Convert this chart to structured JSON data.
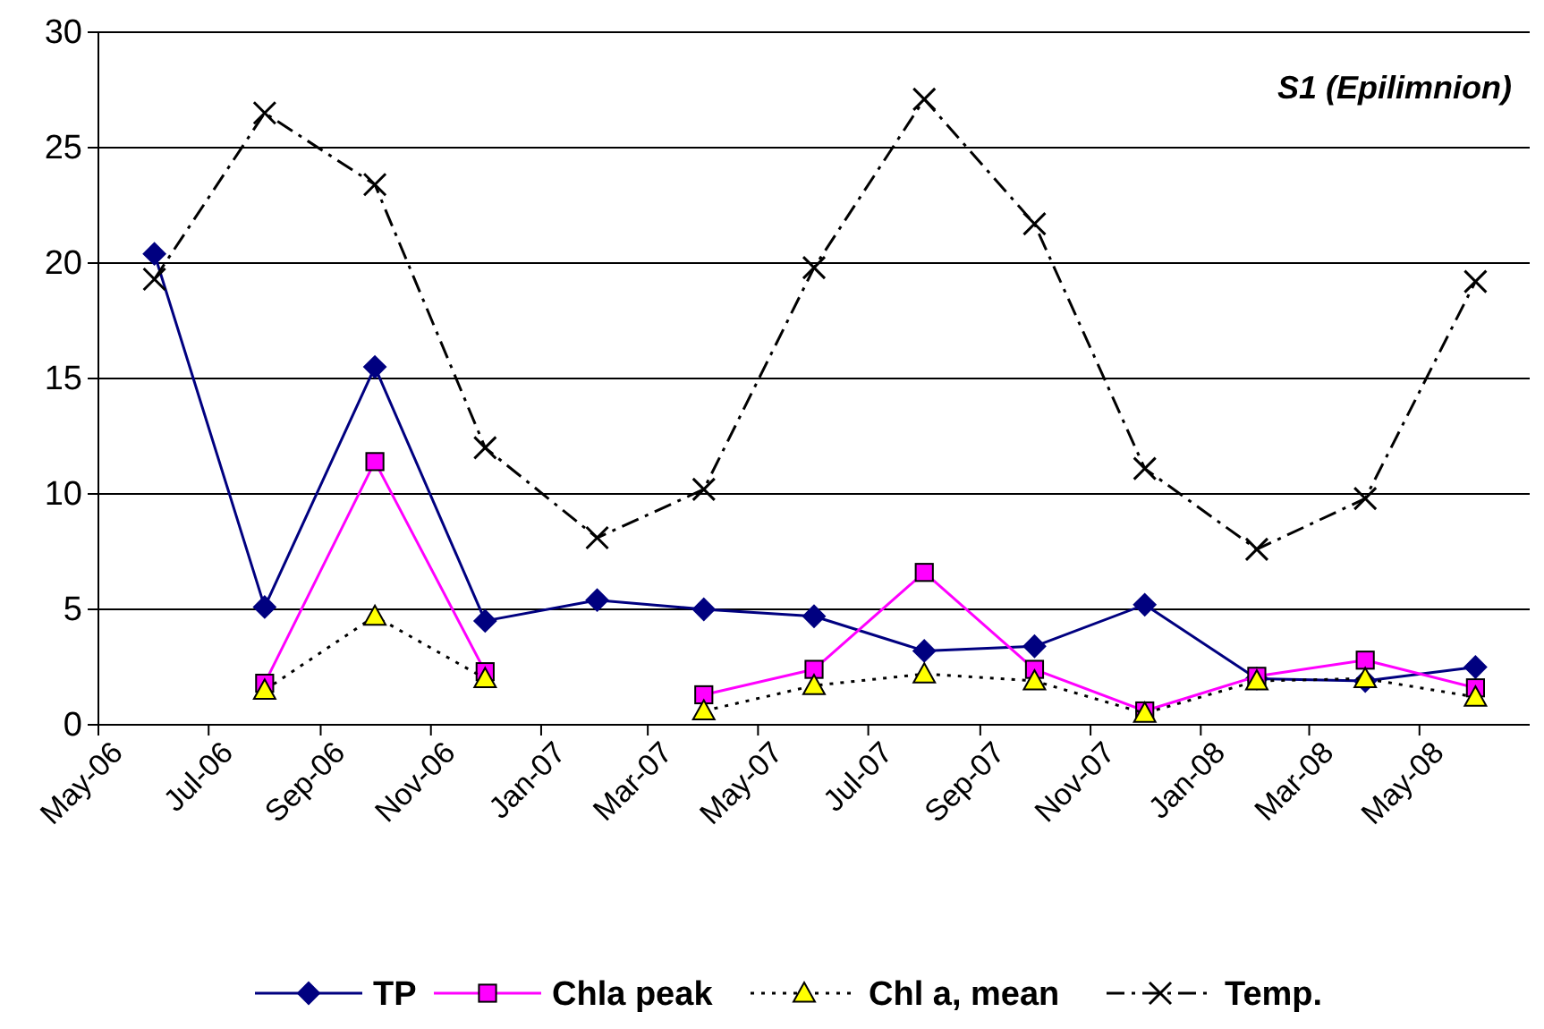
{
  "chart_data": {
    "type": "line",
    "x": [
      "2006-06",
      "2006-08",
      "2006-10",
      "2006-12",
      "2007-02",
      "2007-04",
      "2007-06",
      "2007-08",
      "2007-10",
      "2007-12",
      "2008-02",
      "2008-04",
      "2008-06"
    ],
    "xlim": [
      "2006-05",
      "2008-07"
    ],
    "xticks": [
      {
        "value": "2006-05",
        "label": "May-06"
      },
      {
        "value": "2006-07",
        "label": "Jul-06"
      },
      {
        "value": "2006-09",
        "label": "Sep-06"
      },
      {
        "value": "2006-11",
        "label": "Nov-06"
      },
      {
        "value": "2007-01",
        "label": "Jan-07"
      },
      {
        "value": "2007-03",
        "label": "Mar-07"
      },
      {
        "value": "2007-05",
        "label": "May-07"
      },
      {
        "value": "2007-07",
        "label": "Jul-07"
      },
      {
        "value": "2007-09",
        "label": "Sep-07"
      },
      {
        "value": "2007-11",
        "label": "Nov-07"
      },
      {
        "value": "2008-01",
        "label": "Jan-08"
      },
      {
        "value": "2008-03",
        "label": "Mar-08"
      },
      {
        "value": "2008-05",
        "label": "May-08"
      }
    ],
    "ylim": [
      0,
      30
    ],
    "yticks": [
      0,
      5,
      10,
      15,
      20,
      25,
      30
    ],
    "grid": "y",
    "legend": "bottom",
    "annotations": [
      "S1 (Epilimnion)"
    ],
    "series": [
      {
        "name": "TP",
        "color": "#000080",
        "marker": "diamond",
        "line_style": "solid",
        "values": [
          20.4,
          5.1,
          15.5,
          4.5,
          5.4,
          5.0,
          4.7,
          3.2,
          3.4,
          5.2,
          2.0,
          1.9,
          2.5
        ]
      },
      {
        "name": "Chla peak",
        "color": "#ff00ff",
        "marker": "square",
        "line_style": "solid",
        "values": [
          null,
          1.8,
          11.4,
          2.3,
          null,
          1.3,
          2.4,
          6.6,
          2.4,
          0.6,
          2.1,
          2.8,
          1.6
        ]
      },
      {
        "name": "Chl a, mean",
        "color": "#ffff00",
        "marker": "triangle",
        "line_style": "dotted",
        "values": [
          null,
          1.5,
          4.7,
          2.0,
          null,
          0.6,
          1.7,
          2.2,
          1.9,
          0.5,
          1.9,
          2.0,
          1.2
        ]
      },
      {
        "name": "Temp.",
        "color": "#000000",
        "marker": "cross",
        "line_style": "dashdot",
        "values": [
          19.3,
          26.5,
          23.4,
          12.0,
          8.1,
          10.2,
          19.8,
          27.1,
          21.7,
          11.1,
          7.6,
          9.8,
          19.2
        ]
      }
    ]
  }
}
